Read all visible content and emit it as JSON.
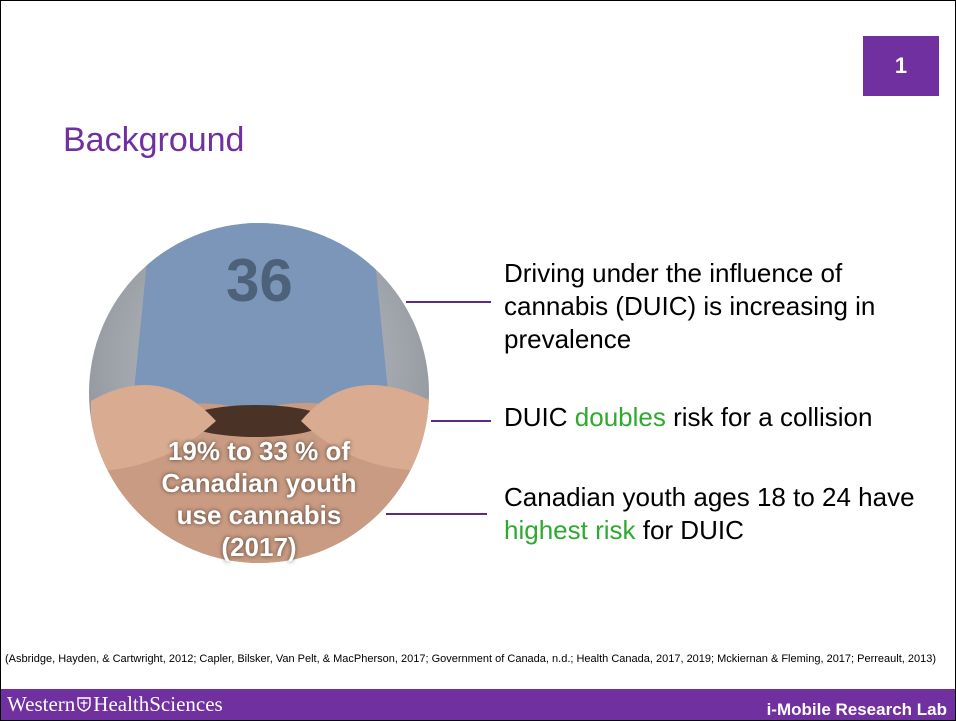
{
  "slide_number": "1",
  "title": "Background",
  "image_caption": [
    "19% to 33 % of",
    "Canadian youth",
    "use cannabis",
    "(2017)"
  ],
  "points": [
    {
      "parts": [
        {
          "text": "Driving under the influence of cannabis (DUIC) is increasing in prevalence",
          "highlight": false
        }
      ]
    },
    {
      "parts": [
        {
          "text": "DUIC ",
          "highlight": false
        },
        {
          "text": "doubles",
          "highlight": true
        },
        {
          "text": " risk for a collision",
          "highlight": false
        }
      ]
    },
    {
      "parts": [
        {
          "text": "Canadian youth ages 18 to 24 have ",
          "highlight": false
        },
        {
          "text": "highest risk",
          "highlight": true
        },
        {
          "text": " for DUIC",
          "highlight": false
        }
      ]
    }
  ],
  "citation": "(Asbridge, Hayden, & Cartwright, 2012; Capler, Bilsker, Van Pelt, & MacPherson, 2017; Government of Canada, n.d.; Health Canada, 2017, 2019; Mckiernan & Fleming, 2017; Perreault, 2013)",
  "footer": {
    "brand_left": "Western",
    "brand_right": "HealthSciences",
    "lab": "i-Mobile Research Lab"
  }
}
